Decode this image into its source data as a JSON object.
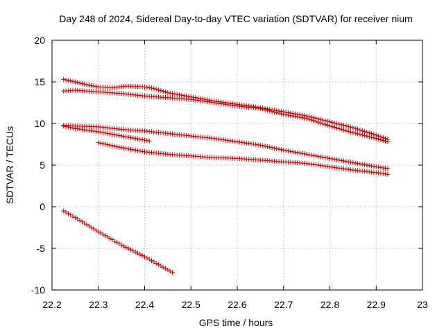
{
  "chart_data": {
    "type": "scatter",
    "title": "Day 248 of 2024, Sidereal Day-to-day VTEC variation (SDTVAR) for receiver nium",
    "xlabel": "GPS time / hours",
    "ylabel": "SDTVAR / TECUs",
    "xlim": [
      22.2,
      23.0
    ],
    "ylim": [
      -10,
      20
    ],
    "xticks": [
      22.2,
      22.3,
      22.4,
      22.5,
      22.6,
      22.7,
      22.8,
      22.9,
      23.0
    ],
    "xtick_labels": [
      "22.2",
      "22.3",
      "22.4",
      "22.5",
      "22.6",
      "22.7",
      "22.8",
      "22.9",
      "23"
    ],
    "yticks": [
      -10,
      -5,
      0,
      5,
      10,
      15,
      20
    ],
    "ytick_labels": [
      "-10",
      "-5",
      "0",
      "5",
      "10",
      "15",
      "20"
    ],
    "grid": true,
    "marker": "+",
    "color": "#cc0000",
    "series": [
      {
        "name": "track-1",
        "x": [
          22.225,
          22.25,
          22.28,
          22.3,
          22.33,
          22.36,
          22.4,
          22.42,
          22.45,
          22.5,
          22.55,
          22.6,
          22.65,
          22.7,
          22.75,
          22.8,
          22.85,
          22.9,
          22.925
        ],
        "y": [
          15.3,
          15.0,
          14.6,
          14.4,
          14.3,
          14.5,
          14.4,
          14.2,
          13.7,
          13.2,
          12.7,
          12.3,
          11.9,
          11.4,
          10.9,
          10.2,
          9.5,
          8.6,
          8.1
        ]
      },
      {
        "name": "track-2",
        "x": [
          22.225,
          22.25,
          22.3,
          22.35,
          22.4,
          22.45,
          22.5,
          22.55,
          22.6,
          22.65,
          22.7,
          22.75,
          22.8,
          22.85,
          22.9,
          22.925
        ],
        "y": [
          13.9,
          14.0,
          13.8,
          13.6,
          13.3,
          13.1,
          12.9,
          12.5,
          12.1,
          11.8,
          11.1,
          10.6,
          9.7,
          8.9,
          8.2,
          7.8
        ]
      },
      {
        "name": "track-3",
        "x": [
          22.225,
          22.25,
          22.3,
          22.35,
          22.4,
          22.45,
          22.5,
          22.55,
          22.6,
          22.65,
          22.7,
          22.75,
          22.8,
          22.85,
          22.9,
          22.925
        ],
        "y": [
          9.8,
          9.7,
          9.6,
          9.3,
          9.1,
          8.8,
          8.5,
          8.2,
          7.8,
          7.4,
          6.8,
          6.3,
          5.8,
          5.3,
          4.8,
          4.6
        ]
      },
      {
        "name": "track-4",
        "x": [
          22.225,
          22.25,
          22.3,
          22.35,
          22.41
        ],
        "y": [
          9.7,
          9.4,
          9.0,
          8.5,
          7.9
        ]
      },
      {
        "name": "track-5",
        "x": [
          22.3,
          22.35,
          22.4,
          22.45,
          22.5,
          22.55,
          22.6,
          22.65,
          22.7,
          22.75,
          22.8,
          22.85,
          22.9,
          22.925
        ],
        "y": [
          7.7,
          7.1,
          6.6,
          6.3,
          6.1,
          5.9,
          5.8,
          5.6,
          5.4,
          5.2,
          4.8,
          4.4,
          4.1,
          3.9
        ]
      },
      {
        "name": "track-6",
        "x": [
          22.225,
          22.25,
          22.3,
          22.35,
          22.4,
          22.46
        ],
        "y": [
          -0.5,
          -1.3,
          -3.0,
          -4.6,
          -6.0,
          -7.9
        ]
      }
    ]
  }
}
